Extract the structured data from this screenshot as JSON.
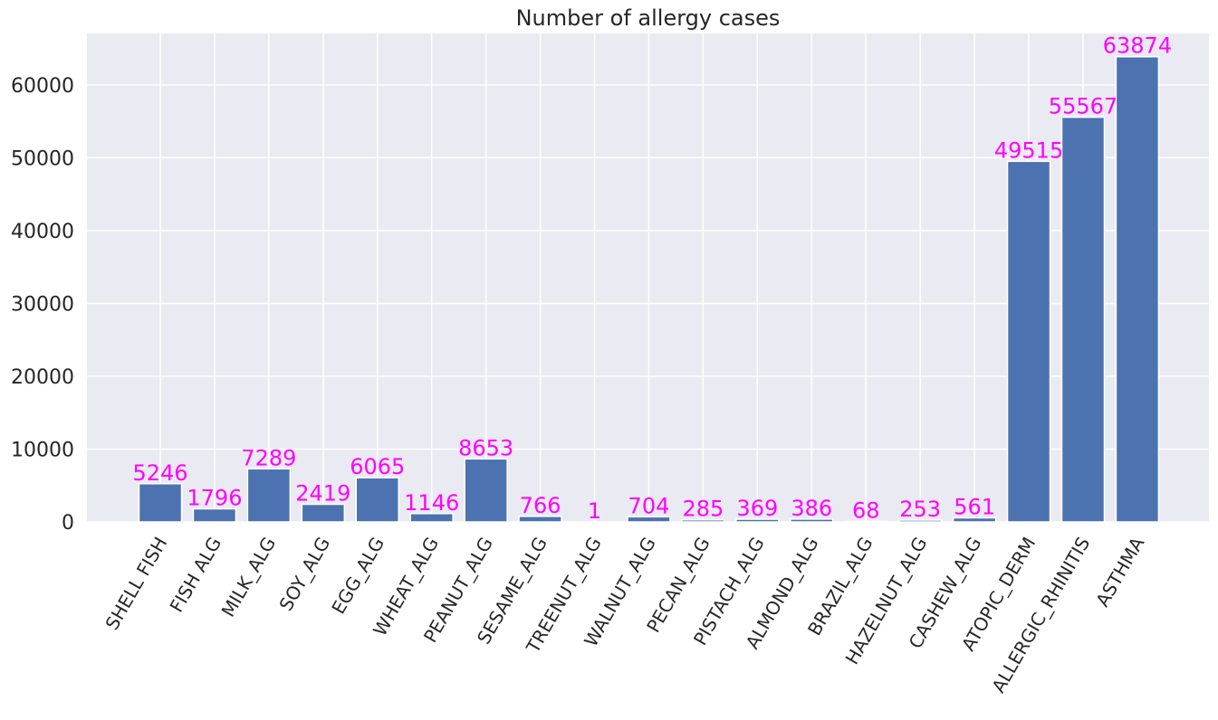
{
  "chart_data": {
    "type": "bar",
    "title": "Number of allergy cases",
    "xlabel": "",
    "ylabel": "",
    "categories": [
      "SHELL FISH",
      "FISH ALG",
      "MILK_ALG",
      "SOY_ALG",
      "EGG_ALG",
      "WHEAT_ALG",
      "PEANUT_ALG",
      "SESAME_ALG",
      "TREENUT_ALG",
      "WALNUT_ALG",
      "PECAN_ALG",
      "PISTACH_ALG",
      "ALMOND_ALG",
      "BRAZIL_ALG",
      "HAZELNUT_ALG",
      "CASHEW_ALG",
      "ATOPIC_DERM",
      "ALLERGIC_RHINITIS",
      "ASTHMA"
    ],
    "values": [
      5246,
      1796,
      7289,
      2419,
      6065,
      1146,
      8653,
      766,
      1,
      704,
      285,
      369,
      386,
      68,
      253,
      561,
      49515,
      55567,
      63874
    ],
    "yticks": [
      0,
      10000,
      20000,
      30000,
      40000,
      50000,
      60000
    ],
    "ylim": [
      0,
      67070
    ],
    "grid": true,
    "bar_color": "#4c72b0",
    "label_color": "#ff00ff",
    "background_color": "#eaeaf2"
  }
}
